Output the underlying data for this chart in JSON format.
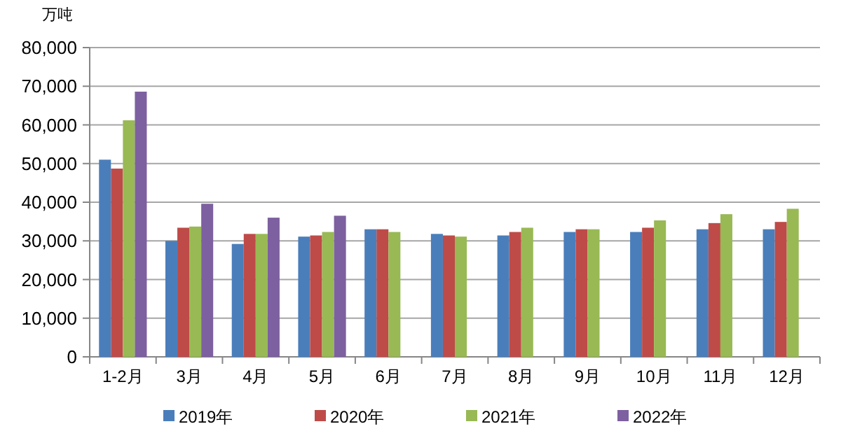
{
  "chart_data": {
    "type": "bar",
    "ylabel": "万吨",
    "categories": [
      "1-2月",
      "3月",
      "4月",
      "5月",
      "6月",
      "7月",
      "8月",
      "9月",
      "10月",
      "11月",
      "12月"
    ],
    "series": [
      {
        "name": "2019年",
        "color": "#4a7ebb",
        "values": [
          51000,
          30000,
          29200,
          31100,
          33000,
          31800,
          31400,
          32300,
          32300,
          33000,
          33000
        ]
      },
      {
        "name": "2020年",
        "color": "#be4b48",
        "values": [
          48700,
          33400,
          31800,
          31400,
          33000,
          31400,
          32300,
          33000,
          33400,
          34600,
          34900
        ]
      },
      {
        "name": "2021年",
        "color": "#98b954",
        "values": [
          61200,
          33700,
          31800,
          32300,
          32300,
          31100,
          33400,
          33000,
          35300,
          36900,
          38300
        ]
      },
      {
        "name": "2022年",
        "color": "#7d60a0",
        "values": [
          68600,
          39600,
          36000,
          36500,
          null,
          null,
          null,
          null,
          null,
          null,
          null
        ]
      }
    ],
    "ylim": [
      0,
      80000
    ],
    "yticks": [
      {
        "value": 0,
        "label": "0"
      },
      {
        "value": 10000,
        "label": "10,000"
      },
      {
        "value": 20000,
        "label": "20,000"
      },
      {
        "value": 30000,
        "label": "30,000"
      },
      {
        "value": 40000,
        "label": "40,000"
      },
      {
        "value": 50000,
        "label": "50,000"
      },
      {
        "value": 60000,
        "label": "60,000"
      },
      {
        "value": 70000,
        "label": "70,000"
      },
      {
        "value": 80000,
        "label": "80,000"
      }
    ],
    "grid": "y",
    "legend": "bottom"
  }
}
